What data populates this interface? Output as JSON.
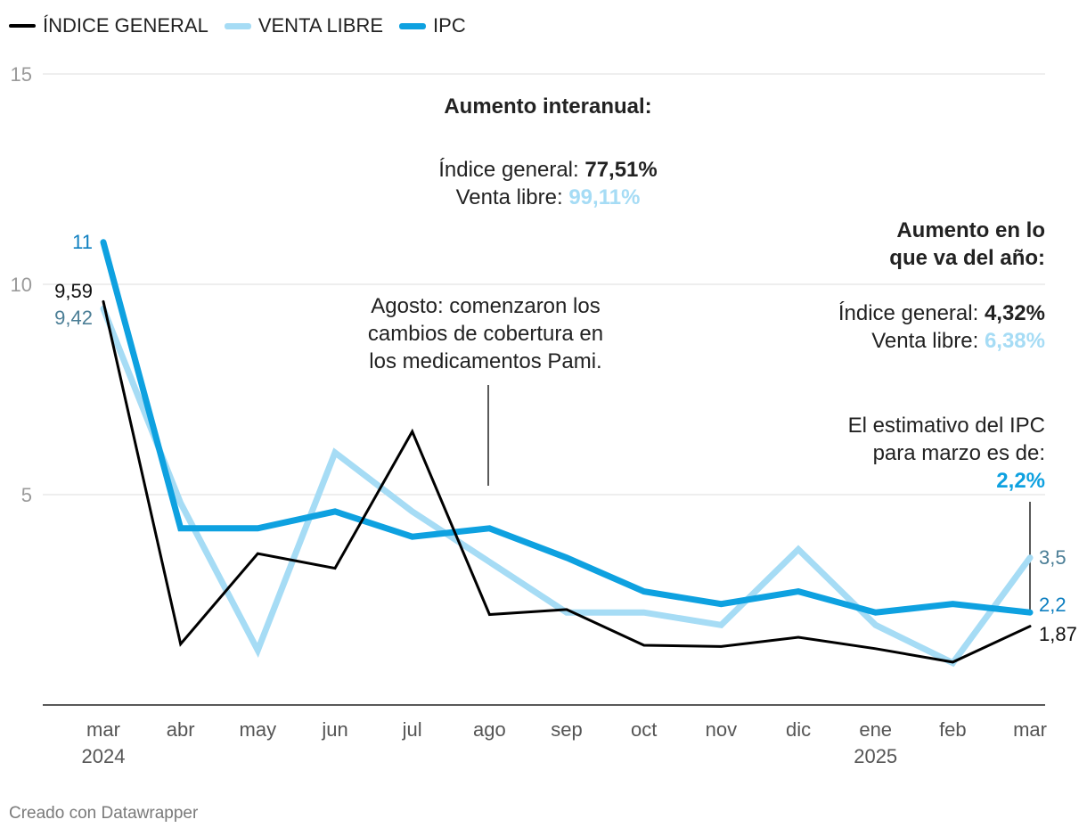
{
  "legend": [
    {
      "label": "ÍNDICE GENERAL",
      "color": "#000000"
    },
    {
      "label": "VENTA LIBRE",
      "color": "#a6dcf5"
    },
    {
      "label": "IPC",
      "color": "#0ea1e0"
    }
  ],
  "annotations": {
    "interanual": {
      "title": "Aumento interanual:",
      "general_label": "Índice general: ",
      "general_value": "77,51%",
      "libre_label": "Venta libre: ",
      "libre_value": "99,11%"
    },
    "anio": {
      "title_line1": "Aumento en lo",
      "title_line2": "que va del año:",
      "general_label": "Índice general: ",
      "general_value": "4,32%",
      "libre_label": "Venta libre: ",
      "libre_value": "6,38%"
    },
    "agosto": {
      "line1": "Agosto: comenzaron los",
      "line2": "cambios de cobertura en",
      "line3": "los medicamentos Pami."
    },
    "ipc_estimate": {
      "line1": "El estimativo del IPC",
      "line2": "para marzo es de:",
      "value": "2,2%"
    }
  },
  "chart_data": {
    "type": "line",
    "categories": [
      "mar",
      "abr",
      "may",
      "jun",
      "jul",
      "ago",
      "sep",
      "oct",
      "nov",
      "dic",
      "ene",
      "feb",
      "mar"
    ],
    "category_years": [
      "2024",
      "",
      "",
      "",
      "",
      "",
      "",
      "",
      "",
      "",
      "2025",
      "",
      ""
    ],
    "ylim": [
      0,
      15
    ],
    "yticks": [
      5,
      10,
      15
    ],
    "ytick_labels": [
      "5",
      "10",
      "15"
    ],
    "series": [
      {
        "name": "VENTA LIBRE",
        "color": "#a6dcf5",
        "values": [
          9.42,
          4.8,
          1.3,
          6.0,
          4.6,
          3.4,
          2.2,
          2.2,
          1.9,
          3.7,
          1.9,
          1.0,
          3.5
        ]
      },
      {
        "name": "IPC",
        "color": "#0ea1e0",
        "values": [
          11.0,
          4.2,
          4.2,
          4.6,
          4.0,
          4.2,
          3.5,
          2.7,
          2.4,
          2.7,
          2.2,
          2.4,
          2.2
        ]
      },
      {
        "name": "ÍNDICE GENERAL",
        "color": "#000000",
        "values": [
          9.59,
          1.45,
          3.6,
          3.25,
          6.5,
          2.15,
          2.27,
          1.42,
          1.39,
          1.61,
          1.34,
          1.02,
          1.87
        ]
      }
    ],
    "data_labels": {
      "start": {
        "ipc": "11",
        "general": "9,59",
        "libre": "9,42"
      },
      "end": {
        "libre": "3,5",
        "ipc": "2,2",
        "general": "1,87"
      }
    }
  },
  "footer": "Creado con Datawrapper"
}
